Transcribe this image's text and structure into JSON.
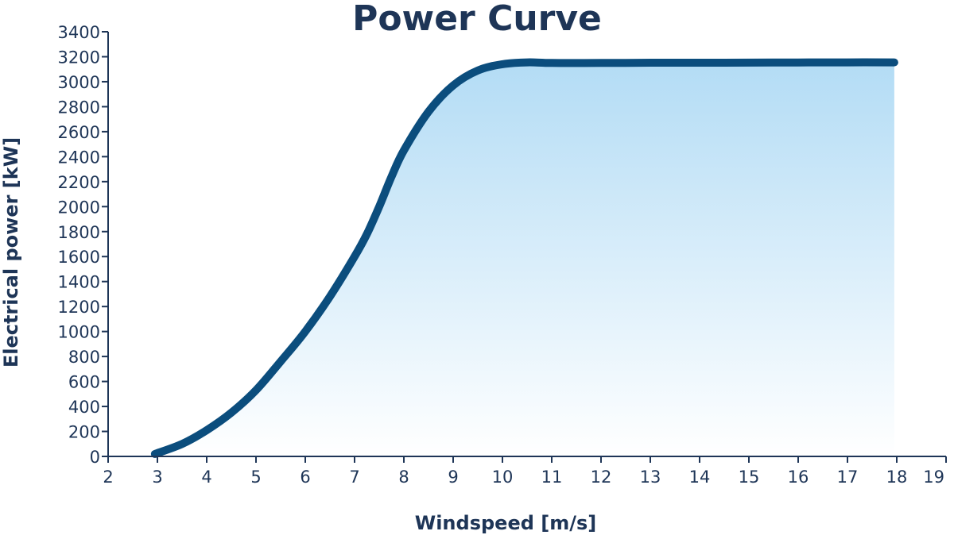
{
  "chart_data": {
    "type": "line",
    "title": "Power Curve",
    "xlabel": "Windspeed [m/s]",
    "ylabel": "Electrical power [kW]",
    "xlim": [
      2,
      19
    ],
    "ylim": [
      0,
      3400
    ],
    "x_ticks": [
      2,
      3,
      4,
      5,
      6,
      7,
      8,
      9,
      10,
      11,
      12,
      13,
      14,
      15,
      16,
      17,
      18,
      19
    ],
    "y_ticks": [
      0,
      200,
      400,
      600,
      800,
      1000,
      1200,
      1400,
      1600,
      1800,
      2000,
      2200,
      2400,
      2600,
      2800,
      3000,
      3200,
      3400
    ],
    "grid": false,
    "fill": "gradient-under-curve",
    "colors": {
      "line": "#0b4d7d",
      "fill_top": "#b3dcf5",
      "text": "#1e3557"
    },
    "series": [
      {
        "x": [
          2.95,
          3.5,
          4,
          4.5,
          5,
          5.5,
          6,
          6.5,
          7,
          7.25,
          7.5,
          7.75,
          8,
          8.5,
          9,
          9.5,
          10,
          10.5,
          11,
          12,
          13,
          14,
          15,
          16,
          17,
          17.95
        ],
        "values": [
          20,
          100,
          210,
          350,
          530,
          760,
          1000,
          1280,
          1600,
          1780,
          2000,
          2240,
          2450,
          2760,
          2970,
          3090,
          3140,
          3155,
          3150,
          3150,
          3152,
          3152,
          3153,
          3154,
          3155,
          3155
        ]
      }
    ]
  }
}
